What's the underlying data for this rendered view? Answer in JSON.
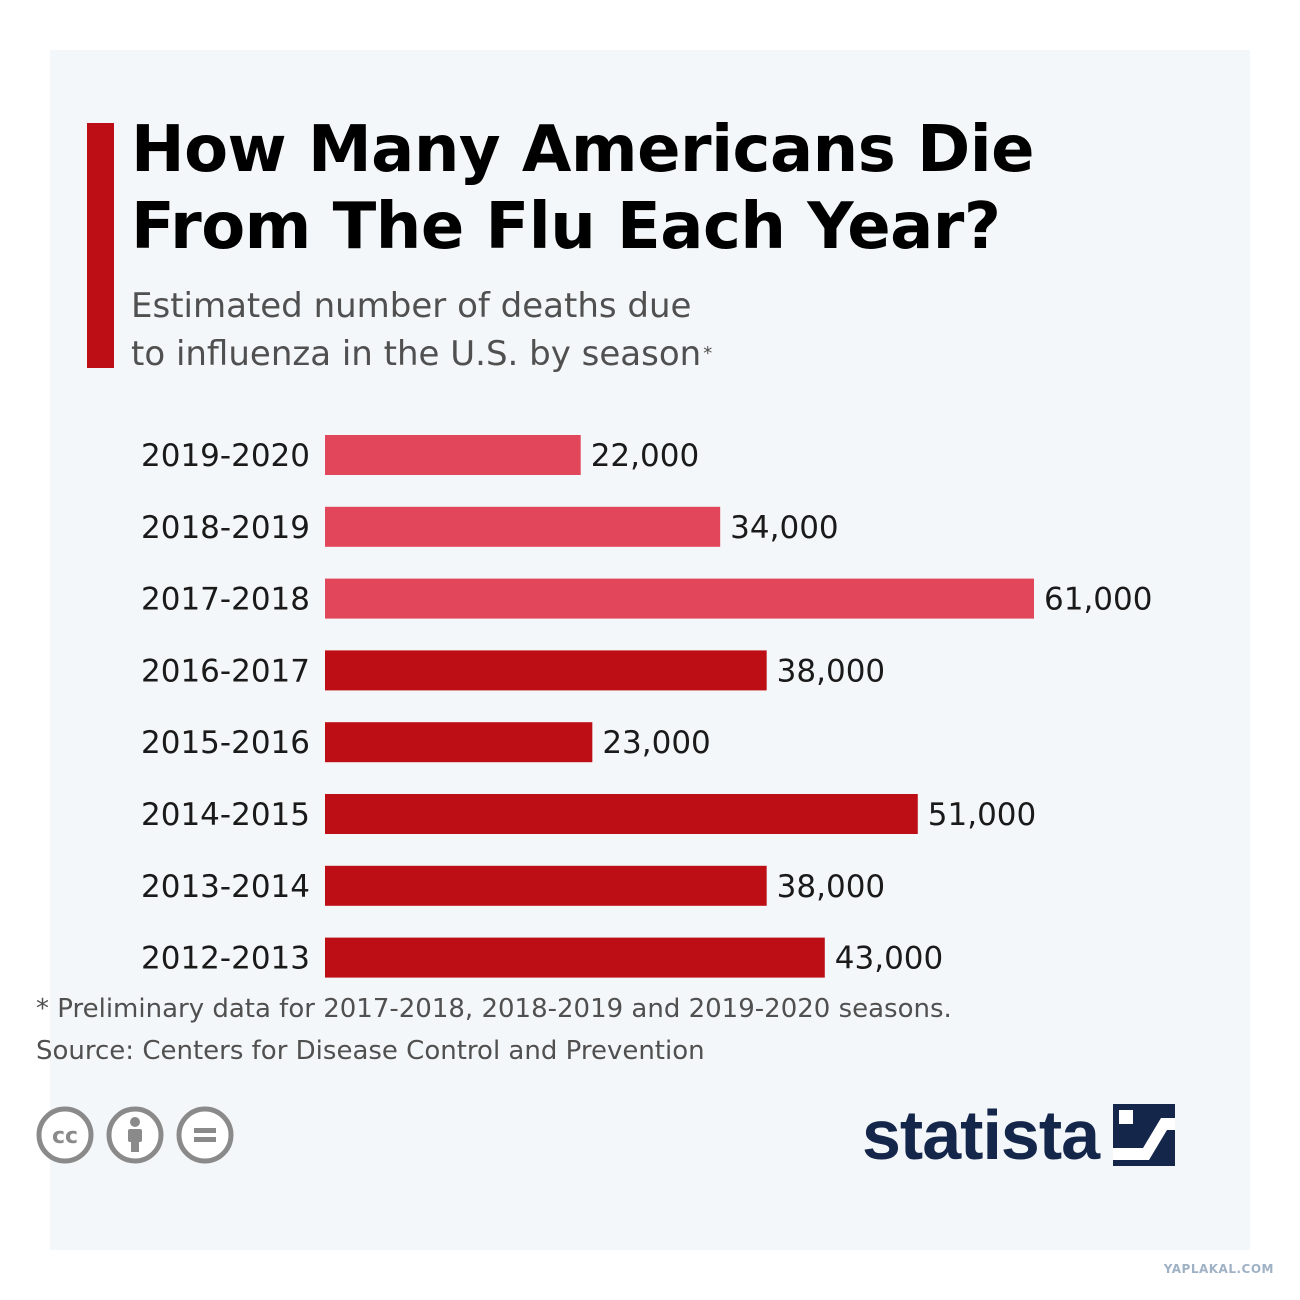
{
  "title_lines": [
    "How Many Americans Die",
    "From The Flu Each Year?"
  ],
  "subtitle_lines": [
    "Estimated number of deaths due",
    "to influenza in the U.S. by season"
  ],
  "subtitle_mark": "*",
  "chart_data": {
    "type": "bar",
    "orientation": "horizontal",
    "title": "How Many Americans Die From The Flu Each Year?",
    "xlabel": "",
    "ylabel": "",
    "xlim": [
      0,
      61000
    ],
    "categories": [
      "2019-2020",
      "2018-2019",
      "2017-2018",
      "2016-2017",
      "2015-2016",
      "2014-2015",
      "2013-2014",
      "2012-2013"
    ],
    "values": [
      22000,
      34000,
      61000,
      38000,
      23000,
      51000,
      38000,
      43000
    ],
    "value_labels": [
      "22,000",
      "34,000",
      "61,000",
      "38,000",
      "23,000",
      "51,000",
      "38,000",
      "43,000"
    ],
    "preliminary": [
      true,
      true,
      true,
      false,
      false,
      false,
      false,
      false
    ],
    "colors": {
      "preliminary": "#e2465a",
      "final": "#bd0e15"
    }
  },
  "footnote": "* Preliminary data for 2017-2018, 2018-2019 and 2019-2020 seasons.",
  "source": "Source: Centers for Disease Control and Prevention",
  "license_icons": [
    "cc-icon",
    "attribution-icon",
    "no-derivatives-icon"
  ],
  "brand": "statista",
  "watermark": "YAPLAKAL.COM",
  "colors": {
    "accent": "#bd0e15",
    "background": "#f4f7f9",
    "brand": "#14264a"
  }
}
